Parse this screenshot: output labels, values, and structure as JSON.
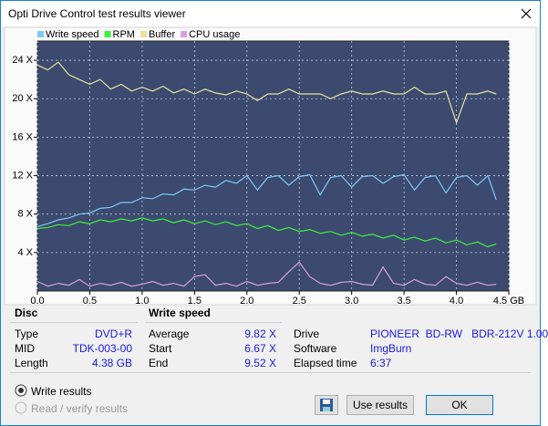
{
  "window": {
    "title": "Opti Drive Control test results viewer"
  },
  "chart_data": {
    "type": "line",
    "x": [
      0,
      0.1,
      0.2,
      0.3,
      0.4,
      0.5,
      0.6,
      0.7,
      0.8,
      0.9,
      1.0,
      1.1,
      1.2,
      1.3,
      1.4,
      1.5,
      1.6,
      1.7,
      1.8,
      1.9,
      2.0,
      2.1,
      2.2,
      2.3,
      2.4,
      2.5,
      2.6,
      2.7,
      2.8,
      2.9,
      3.0,
      3.1,
      3.2,
      3.3,
      3.4,
      3.5,
      3.6,
      3.7,
      3.8,
      3.9,
      4.0,
      4.1,
      4.2,
      4.3,
      4.38
    ],
    "series": [
      {
        "name": "Write speed",
        "color": "#7ec8f8",
        "values": [
          6.7,
          7.0,
          7.4,
          7.6,
          8.0,
          8.1,
          8.6,
          8.7,
          9.2,
          9.2,
          9.7,
          9.6,
          10.1,
          10.0,
          10.6,
          10.5,
          11.0,
          10.8,
          11.5,
          11.2,
          12.0,
          10.5,
          11.8,
          12.0,
          11.0,
          11.9,
          12.1,
          10.0,
          11.8,
          12.0,
          10.8,
          11.9,
          12.0,
          11.2,
          11.9,
          12.1,
          10.5,
          11.8,
          12.0,
          10.2,
          11.8,
          12.0,
          11.0,
          12.0,
          9.5
        ]
      },
      {
        "name": "RPM",
        "color": "#3ef03e",
        "values": [
          6.5,
          6.6,
          6.9,
          6.8,
          7.2,
          7.0,
          7.4,
          7.2,
          7.5,
          7.3,
          7.6,
          7.3,
          7.5,
          7.1,
          7.4,
          7.0,
          7.3,
          6.9,
          7.2,
          6.8,
          7.0,
          6.5,
          6.8,
          6.3,
          6.6,
          6.2,
          6.4,
          6.0,
          6.2,
          5.8,
          6.1,
          5.7,
          5.9,
          5.5,
          5.8,
          5.3,
          5.6,
          5.2,
          5.5,
          5.0,
          5.3,
          4.8,
          5.1,
          4.6,
          4.9
        ]
      },
      {
        "name": "Buffer",
        "color": "#e8e0a0",
        "values": [
          23.5,
          23.0,
          23.8,
          22.5,
          22.0,
          21.5,
          22.0,
          21.0,
          21.5,
          20.8,
          21.2,
          20.8,
          21.3,
          20.6,
          21.0,
          20.5,
          21.0,
          20.6,
          20.4,
          20.8,
          20.5,
          19.8,
          20.5,
          20.5,
          21.0,
          20.5,
          20.5,
          20.5,
          20.0,
          20.5,
          20.8,
          20.5,
          20.5,
          20.8,
          20.5,
          20.5,
          21.2,
          20.5,
          20.5,
          20.8,
          17.5,
          20.5,
          20.5,
          20.8,
          20.5
        ]
      },
      {
        "name": "CPU usage",
        "color": "#d8a0d8",
        "values": [
          1.0,
          0.5,
          0.8,
          0.6,
          1.2,
          0.5,
          0.8,
          0.6,
          0.9,
          0.5,
          0.7,
          1.0,
          0.6,
          0.8,
          0.5,
          1.5,
          1.7,
          0.6,
          0.8,
          0.5,
          1.0,
          0.6,
          0.8,
          0.9,
          2.0,
          3.0,
          1.5,
          0.8,
          0.6,
          0.9,
          1.0,
          0.7,
          0.6,
          2.5,
          0.8,
          0.6,
          1.2,
          0.7,
          0.6,
          1.5,
          0.8,
          0.6,
          0.9,
          0.6,
          0.7
        ]
      }
    ],
    "xlim": [
      0,
      4.5
    ],
    "ylim": [
      0,
      26
    ],
    "xticks": [
      {
        "value": 0,
        "label": "0.0"
      },
      {
        "value": 0.5,
        "label": "0.5"
      },
      {
        "value": 1,
        "label": "1.0"
      },
      {
        "value": 1.5,
        "label": "1.5"
      },
      {
        "value": 2,
        "label": "2.0"
      },
      {
        "value": 2.5,
        "label": "2.5"
      },
      {
        "value": 3,
        "label": "3.0"
      },
      {
        "value": 3.5,
        "label": "3.5"
      },
      {
        "value": 4,
        "label": "4.0"
      },
      {
        "value": 4.5,
        "label": "4.5 GB"
      }
    ],
    "yticks": [
      {
        "value": 4,
        "label": "4 X"
      },
      {
        "value": 8,
        "label": "8 X"
      },
      {
        "value": 12,
        "label": "12 X"
      },
      {
        "value": 16,
        "label": "16 X"
      },
      {
        "value": 20,
        "label": "20 X"
      },
      {
        "value": 24,
        "label": "24 X"
      }
    ],
    "grid": true,
    "legend": "top-left"
  },
  "disc": {
    "heading": "Disc",
    "rows": [
      [
        "Type",
        "DVD+R"
      ],
      [
        "MID",
        "TDK-003-00"
      ],
      [
        "Length",
        "4.38 GB"
      ]
    ]
  },
  "write_speed": {
    "heading": "Write speed",
    "rows": [
      [
        "Average",
        "9.82 X"
      ],
      [
        "Start",
        "6.67 X"
      ],
      [
        "End",
        "9.52 X"
      ]
    ]
  },
  "drive": {
    "rows": [
      [
        "Drive",
        "PIONEER  BD-RW   BDR-212V 1.00"
      ],
      [
        "Software",
        "ImgBurn"
      ],
      [
        "Elapsed time",
        "6:37"
      ]
    ]
  },
  "options": [
    "Write results",
    "Read / verify results"
  ],
  "buttons": [
    "Use results",
    "OK"
  ]
}
